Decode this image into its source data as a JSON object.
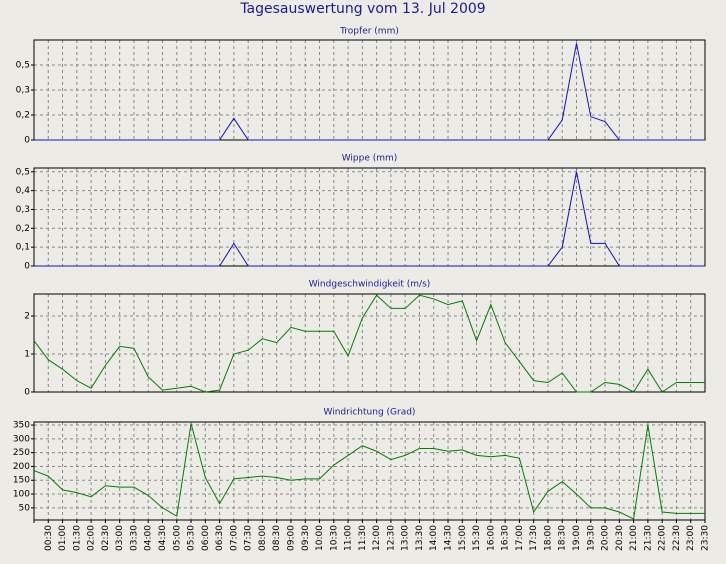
{
  "title": "Tagesauswertung vom 13. Jul 2009",
  "chart_data": [
    {
      "type": "line",
      "title": "Tropfer (mm)",
      "color": "#1010d0",
      "categories": [
        null,
        "00:30",
        "01:00",
        "01:30",
        "02:00",
        "02:30",
        "03:00",
        "03:30",
        "04:00",
        "04:30",
        "05:00",
        "05:30",
        "06:00",
        "06:30",
        "07:00",
        "07:30",
        "08:00",
        "08:30",
        "09:00",
        "09:30",
        "10:00",
        "10:30",
        "11:00",
        "11:30",
        "12:00",
        "12:30",
        "13:00",
        "13:30",
        "14:00",
        "14:30",
        "15:00",
        "15:30",
        "16:00",
        "16:30",
        "17:00",
        "17:30",
        "18:00",
        "18:30",
        "19:00",
        "19:30",
        "20:00",
        "20:30",
        "21:00",
        "21:30",
        "22:00",
        "22:30",
        "23:00",
        "23:30"
      ],
      "values": [
        0,
        0,
        0,
        0,
        0,
        0,
        0,
        0,
        0,
        0,
        0,
        0,
        0,
        0,
        0.13,
        0,
        0,
        0,
        0,
        0,
        0,
        0,
        0,
        0,
        0,
        0,
        0,
        0,
        0,
        0,
        0,
        0,
        0,
        0,
        0,
        0,
        0,
        0.12,
        0.58,
        0.14,
        0.11,
        0,
        0,
        0,
        0,
        0,
        0,
        0
      ],
      "ylim": [
        0,
        0.6
      ],
      "yticks": [
        0,
        {
          "value": 0.15,
          "label": "0,2"
        },
        {
          "value": 0.3,
          "label": "0,3"
        },
        {
          "value": 0.45,
          "label": "0,5"
        }
      ],
      "grid": true
    },
    {
      "type": "line",
      "title": "Wippe (mm)",
      "color": "#1010d0",
      "categories": [
        null,
        "00:30",
        "01:00",
        "01:30",
        "02:00",
        "02:30",
        "03:00",
        "03:30",
        "04:00",
        "04:30",
        "05:00",
        "05:30",
        "06:00",
        "06:30",
        "07:00",
        "07:30",
        "08:00",
        "08:30",
        "09:00",
        "09:30",
        "10:00",
        "10:30",
        "11:00",
        "11:30",
        "12:00",
        "12:30",
        "13:00",
        "13:30",
        "14:00",
        "14:30",
        "15:00",
        "15:30",
        "16:00",
        "16:30",
        "17:00",
        "17:30",
        "18:00",
        "18:30",
        "19:00",
        "19:30",
        "20:00",
        "20:30",
        "21:00",
        "21:30",
        "22:00",
        "22:30",
        "23:00",
        "23:30"
      ],
      "values": [
        0,
        0,
        0,
        0,
        0,
        0,
        0,
        0,
        0,
        0,
        0,
        0,
        0,
        0,
        0.12,
        0,
        0,
        0,
        0,
        0,
        0,
        0,
        0,
        0,
        0,
        0,
        0,
        0,
        0,
        0,
        0,
        0,
        0,
        0,
        0,
        0,
        0,
        0.1,
        0.5,
        0.12,
        0.12,
        0,
        0,
        0,
        0,
        0,
        0,
        0
      ],
      "ylim": [
        0,
        0.52
      ],
      "yticks": [
        0,
        {
          "value": 0.1,
          "label": "0,1"
        },
        {
          "value": 0.2,
          "label": "0,2"
        },
        {
          "value": 0.3,
          "label": "0,3"
        },
        {
          "value": 0.4,
          "label": "0,4"
        },
        {
          "value": 0.5,
          "label": "0,5"
        }
      ],
      "grid": true
    },
    {
      "type": "line",
      "title": "Windgeschwindigkeit (m/s)",
      "color": "#008000",
      "categories": [
        null,
        "00:30",
        "01:00",
        "01:30",
        "02:00",
        "02:30",
        "03:00",
        "03:30",
        "04:00",
        "04:30",
        "05:00",
        "05:30",
        "06:00",
        "06:30",
        "07:00",
        "07:30",
        "08:00",
        "08:30",
        "09:00",
        "09:30",
        "10:00",
        "10:30",
        "11:00",
        "11:30",
        "12:00",
        "12:30",
        "13:00",
        "13:30",
        "14:00",
        "14:30",
        "15:00",
        "15:30",
        "16:00",
        "16:30",
        "17:00",
        "17:30",
        "18:00",
        "18:30",
        "19:00",
        "19:30",
        "20:00",
        "20:30",
        "21:00",
        "21:30",
        "22:00",
        "22:30",
        "23:00",
        "23:30"
      ],
      "values": [
        1.35,
        0.85,
        0.6,
        0.3,
        0.1,
        0.7,
        1.2,
        1.15,
        0.4,
        0.05,
        0.1,
        0.15,
        0,
        0.05,
        1.0,
        1.1,
        1.4,
        1.3,
        1.7,
        1.6,
        1.6,
        1.6,
        0.95,
        1.95,
        2.55,
        2.2,
        2.2,
        2.55,
        2.45,
        2.3,
        2.4,
        1.35,
        2.3,
        1.3,
        0.8,
        0.3,
        0.25,
        0.5,
        0,
        0,
        0.25,
        0.2,
        0,
        0.6,
        0,
        0.25,
        0.25,
        0.25
      ],
      "ylim": [
        0,
        2.58
      ],
      "yticks": [
        0,
        1,
        2
      ],
      "grid": true
    },
    {
      "type": "line",
      "title": "Windrichtung (Grad)",
      "color": "#008000",
      "categories": [
        null,
        "00:30",
        "01:00",
        "01:30",
        "02:00",
        "02:30",
        "03:00",
        "03:30",
        "04:00",
        "04:30",
        "05:00",
        "05:30",
        "06:00",
        "06:30",
        "07:00",
        "07:30",
        "08:00",
        "08:30",
        "09:00",
        "09:30",
        "10:00",
        "10:30",
        "11:00",
        "11:30",
        "12:00",
        "12:30",
        "13:00",
        "13:30",
        "14:00",
        "14:30",
        "15:00",
        "15:30",
        "16:00",
        "16:30",
        "17:00",
        "17:30",
        "18:00",
        "18:30",
        "19:00",
        "19:30",
        "20:00",
        "20:30",
        "21:00",
        "21:30",
        "22:00",
        "22:30",
        "23:00",
        "23:30"
      ],
      "values": [
        185,
        165,
        115,
        105,
        90,
        130,
        125,
        125,
        95,
        50,
        20,
        355,
        160,
        65,
        155,
        160,
        165,
        160,
        150,
        155,
        155,
        205,
        240,
        275,
        255,
        225,
        240,
        265,
        265,
        255,
        260,
        240,
        235,
        240,
        230,
        35,
        110,
        145,
        100,
        50,
        50,
        35,
        10,
        350,
        35,
        30,
        30,
        30
      ],
      "ylim": [
        6,
        361
      ],
      "yticks": [
        50,
        100,
        150,
        200,
        250,
        300,
        350
      ],
      "grid": true
    }
  ]
}
